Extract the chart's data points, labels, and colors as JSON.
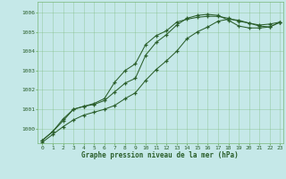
{
  "title": "Graphe pression niveau de la mer (hPa)",
  "bg_color": "#c5e8e8",
  "grid_color": "#7ab87a",
  "line_color": "#2a5e2a",
  "xlim": [
    -0.5,
    23.3
  ],
  "ylim": [
    999.25,
    1006.55
  ],
  "yticks": [
    1000,
    1001,
    1002,
    1003,
    1004,
    1005,
    1006
  ],
  "xticks": [
    0,
    1,
    2,
    3,
    4,
    5,
    6,
    7,
    8,
    9,
    10,
    11,
    12,
    13,
    14,
    15,
    16,
    17,
    18,
    19,
    20,
    21,
    22,
    23
  ],
  "series": [
    {
      "x": [
        0,
        1,
        2,
        3,
        4,
        5,
        6,
        7,
        8,
        9,
        10,
        11,
        12,
        13,
        14,
        15,
        16,
        17,
        18,
        19,
        20,
        21,
        22,
        23
      ],
      "y": [
        999.4,
        999.85,
        1000.5,
        1001.0,
        1001.15,
        1001.3,
        1001.55,
        1002.4,
        1003.0,
        1003.35,
        1004.35,
        1004.8,
        1005.05,
        1005.5,
        1005.65,
        1005.75,
        1005.8,
        1005.8,
        1005.7,
        1005.55,
        1005.45,
        1005.35,
        1005.4,
        1005.5
      ]
    },
    {
      "x": [
        0,
        1,
        2,
        3,
        4,
        5,
        6,
        7,
        8,
        9,
        10,
        11,
        12,
        13,
        14,
        15,
        16,
        17,
        18,
        19,
        20,
        21,
        22,
        23
      ],
      "y": [
        999.4,
        999.85,
        1000.4,
        1001.0,
        1001.15,
        1001.25,
        1001.45,
        1001.9,
        1002.35,
        1002.6,
        1003.8,
        1004.45,
        1004.85,
        1005.35,
        1005.7,
        1005.85,
        1005.9,
        1005.85,
        1005.6,
        1005.3,
        1005.2,
        1005.2,
        1005.25,
        1005.5
      ]
    },
    {
      "x": [
        0,
        1,
        2,
        3,
        4,
        5,
        6,
        7,
        8,
        9,
        10,
        11,
        12,
        13,
        14,
        15,
        16,
        17,
        18,
        19,
        20,
        21,
        22,
        23
      ],
      "y": [
        999.3,
        999.7,
        1000.1,
        1000.45,
        1000.7,
        1000.85,
        1001.0,
        1001.2,
        1001.55,
        1001.85,
        1002.5,
        1003.05,
        1003.5,
        1004.0,
        1004.65,
        1005.0,
        1005.25,
        1005.55,
        1005.65,
        1005.6,
        1005.45,
        1005.3,
        1005.25,
        1005.5
      ]
    }
  ]
}
